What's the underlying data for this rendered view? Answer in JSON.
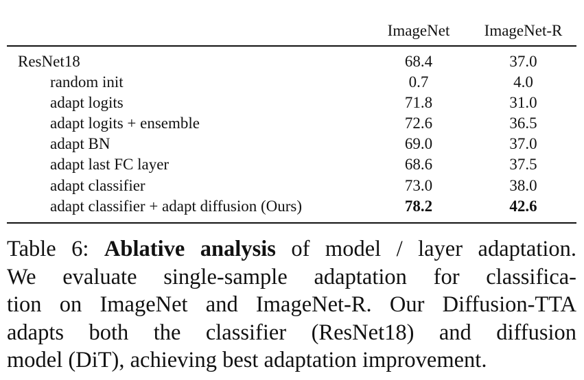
{
  "table": {
    "headers": [
      "ImageNet",
      "ImageNet-R"
    ],
    "rows": [
      {
        "label": "ResNet18",
        "imagenet": "68.4",
        "imagenet_r": "37.0"
      },
      {
        "label": "random init",
        "imagenet": "0.7",
        "imagenet_r": "4.0"
      },
      {
        "label": "adapt logits",
        "imagenet": "71.8",
        "imagenet_r": "31.0"
      },
      {
        "label": "adapt logits + ensemble",
        "imagenet": "72.6",
        "imagenet_r": "36.5"
      },
      {
        "label": "adapt BN",
        "imagenet": "69.0",
        "imagenet_r": "37.0"
      },
      {
        "label": "adapt last FC layer",
        "imagenet": "68.6",
        "imagenet_r": "37.5"
      },
      {
        "label": "adapt classifier",
        "imagenet": "73.0",
        "imagenet_r": "38.0"
      },
      {
        "label": "adapt classifier + adapt diffusion (Ours)",
        "imagenet": "78.2",
        "imagenet_r": "42.6"
      }
    ]
  },
  "caption": {
    "label": "Table 6:",
    "bold": "Ablative analysis",
    "line1_rest": "of model / layer adaptation.",
    "line2": "We evaluate single-sample adaptation for classifica-",
    "line3": "tion on ImageNet and ImageNet-R. Our Diffusion-TTA",
    "line4": "adapts both the classifier (ResNet18) and diffusion",
    "line5": "model (DiT), achieving best adaptation improvement."
  }
}
